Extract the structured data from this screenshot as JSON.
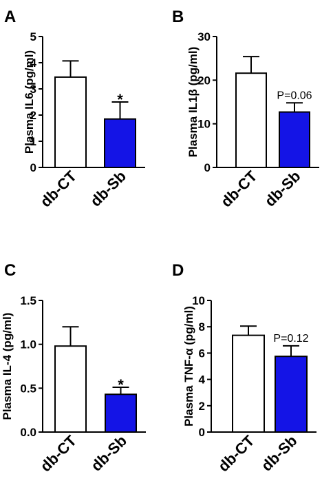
{
  "chart_data": [
    {
      "type": "bar",
      "panel": "A",
      "ylabel": "Plasma IL6 (pg/ml)",
      "categories": [
        "db-CT",
        "db-Sb"
      ],
      "values": [
        3.45,
        1.85
      ],
      "errors": [
        0.62,
        0.65
      ],
      "ylim": [
        0,
        5
      ],
      "yticks": [
        "0",
        "1",
        "2",
        "3",
        "4",
        "5"
      ],
      "bar_colors": [
        "#ffffff",
        "#1414e6"
      ],
      "annotation": "*"
    },
    {
      "type": "bar",
      "panel": "B",
      "ylabel": "Plasma IL1β (pg/ml)",
      "categories": [
        "db-CT",
        "db-Sb"
      ],
      "values": [
        21.6,
        12.7
      ],
      "errors": [
        3.8,
        2.1
      ],
      "ylim": [
        0,
        30
      ],
      "yticks": [
        "0",
        "10",
        "20",
        "30"
      ],
      "bar_colors": [
        "#ffffff",
        "#1414e6"
      ],
      "annotation": "P=0.06"
    },
    {
      "type": "bar",
      "panel": "C",
      "ylabel": "Plasma IL-4 (pg/ml)",
      "categories": [
        "db-CT",
        "db-Sb"
      ],
      "values": [
        0.98,
        0.43
      ],
      "errors": [
        0.22,
        0.08
      ],
      "ylim": [
        0,
        1.5
      ],
      "yticks": [
        "0.0",
        "0.5",
        "1.0",
        "1.5"
      ],
      "bar_colors": [
        "#ffffff",
        "#1414e6"
      ],
      "annotation": "*"
    },
    {
      "type": "bar",
      "panel": "D",
      "ylabel": "Plasma TNF-α (pg/ml)",
      "categories": [
        "db-CT",
        "db-Sb"
      ],
      "values": [
        7.35,
        5.75
      ],
      "errors": [
        0.7,
        0.8
      ],
      "ylim": [
        0,
        10
      ],
      "yticks": [
        "0",
        "2",
        "4",
        "6",
        "8",
        "10"
      ],
      "bar_colors": [
        "#ffffff",
        "#1414e6"
      ],
      "annotation": "P=0.12"
    }
  ]
}
